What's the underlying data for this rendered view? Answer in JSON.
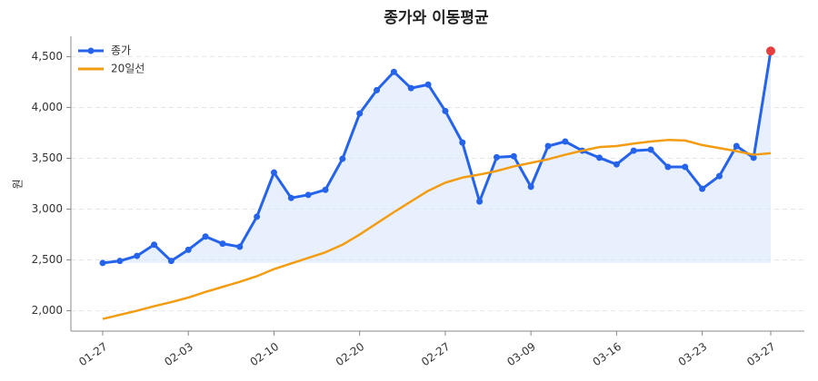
{
  "chart_data": {
    "type": "line",
    "title": "종가와 이동평균",
    "y_label": "원",
    "categories": [
      "01-27",
      null,
      null,
      null,
      null,
      "02-03",
      null,
      null,
      null,
      null,
      "02-10",
      null,
      null,
      null,
      null,
      "02-20",
      null,
      null,
      null,
      null,
      "02-27",
      null,
      null,
      null,
      null,
      "03-09",
      null,
      null,
      null,
      null,
      "03-16",
      null,
      null,
      null,
      null,
      "03-23",
      null,
      null,
      null,
      "03-27"
    ],
    "series": [
      {
        "name": "종가",
        "color": "#2563eb",
        "markers": true,
        "fill": "#dbe6fb",
        "values": [
          2470,
          2490,
          2540,
          2650,
          2490,
          2600,
          2730,
          2660,
          2630,
          2925,
          3360,
          3110,
          3140,
          3190,
          3495,
          3940,
          4170,
          4350,
          4190,
          4225,
          3965,
          3655,
          3075,
          3510,
          3520,
          3220,
          3620,
          3665,
          3575,
          3505,
          3440,
          3575,
          3585,
          3415,
          3415,
          3200,
          3325,
          3620,
          3505,
          4555
        ]
      },
      {
        "name": "20일선",
        "color": "#f39c12",
        "markers": false,
        "values": [
          1920,
          1960,
          2000,
          2045,
          2085,
          2130,
          2185,
          2235,
          2285,
          2340,
          2410,
          2465,
          2520,
          2575,
          2650,
          2750,
          2860,
          2970,
          3075,
          3180,
          3260,
          3310,
          3340,
          3375,
          3420,
          3455,
          3490,
          3535,
          3575,
          3610,
          3620,
          3645,
          3665,
          3680,
          3675,
          3630,
          3600,
          3570,
          3535,
          3550
        ]
      }
    ],
    "highlight_last_color": "#e53e3e",
    "ylim": [
      1800,
      4700
    ],
    "yticks": [
      {
        "value": 2000,
        "label": "2,000"
      },
      {
        "value": 2500,
        "label": "2,500"
      },
      {
        "value": 3000,
        "label": "3,000"
      },
      {
        "value": 3500,
        "label": "3,500"
      },
      {
        "value": 4000,
        "label": "4,000"
      },
      {
        "value": 4500,
        "label": "4,500"
      }
    ],
    "grid": true,
    "legend": "upper-left"
  }
}
